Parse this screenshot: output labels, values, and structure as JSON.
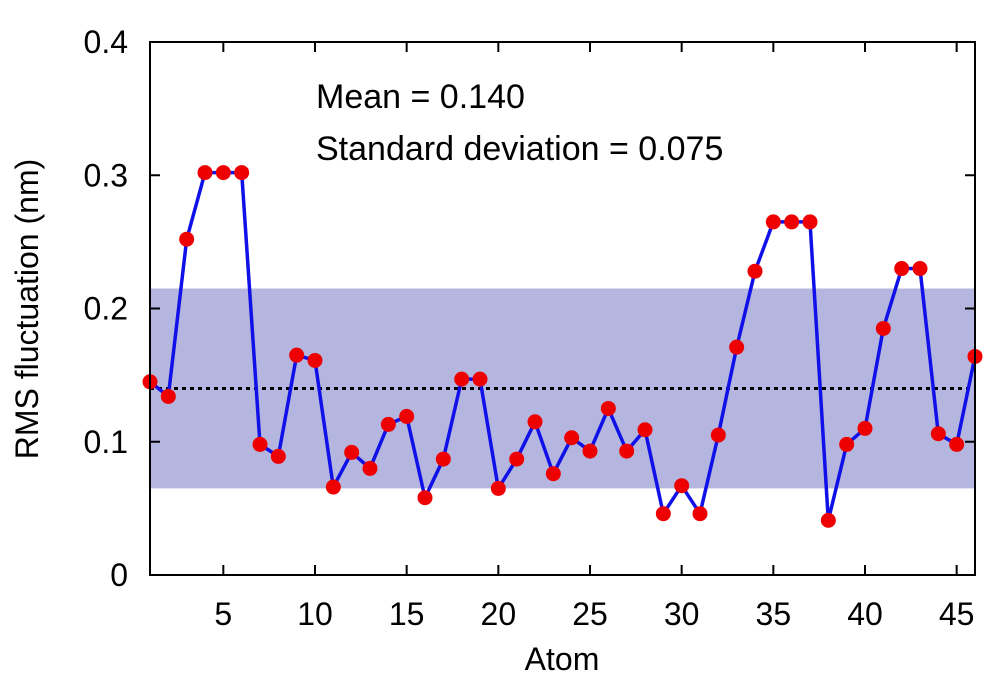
{
  "chart_data": {
    "type": "line",
    "xlabel": "Atom",
    "ylabel": "RMS fluctuation (nm)",
    "xlim": [
      1,
      46
    ],
    "ylim": [
      0,
      0.4
    ],
    "x_ticks": [
      5,
      10,
      15,
      20,
      25,
      30,
      35,
      40,
      45
    ],
    "x_tick_labels": [
      "5",
      "10",
      "15",
      "20",
      "25",
      "30",
      "35",
      "40",
      "45"
    ],
    "y_ticks": [
      0,
      0.1,
      0.2,
      0.3,
      0.4
    ],
    "y_tick_labels": [
      "0",
      "0.1",
      "0.2",
      "0.3",
      "0.4"
    ],
    "annotations": [
      "Mean = 0.140",
      "Standard deviation = 0.075"
    ],
    "mean": 0.14,
    "std_dev": 0.075,
    "band": [
      0.065,
      0.215
    ],
    "grid": false,
    "series": [
      {
        "x": [
          1,
          2,
          3,
          4,
          5,
          6,
          7,
          8,
          9,
          10,
          11,
          12,
          13,
          14,
          15,
          16,
          17,
          18,
          19,
          20,
          21,
          22,
          23,
          24,
          25,
          26,
          27,
          28,
          29,
          30,
          31,
          32,
          33,
          34,
          35,
          36,
          37,
          38,
          39,
          40,
          41,
          42,
          43,
          44,
          45,
          46
        ],
        "values": [
          0.145,
          0.134,
          0.252,
          0.302,
          0.302,
          0.302,
          0.098,
          0.089,
          0.165,
          0.161,
          0.066,
          0.092,
          0.08,
          0.113,
          0.119,
          0.058,
          0.087,
          0.147,
          0.147,
          0.065,
          0.087,
          0.115,
          0.076,
          0.103,
          0.093,
          0.125,
          0.093,
          0.109,
          0.046,
          0.067,
          0.046,
          0.105,
          0.171,
          0.228,
          0.265,
          0.265,
          0.265,
          0.041,
          0.098,
          0.11,
          0.185,
          0.23,
          0.23,
          0.106,
          0.098,
          0.164
        ]
      }
    ],
    "colors": {
      "line": "#1010e8",
      "marker": "#ee0000",
      "band": "#b4b6df",
      "mean_line": "#000000",
      "axes": "#000000"
    }
  }
}
